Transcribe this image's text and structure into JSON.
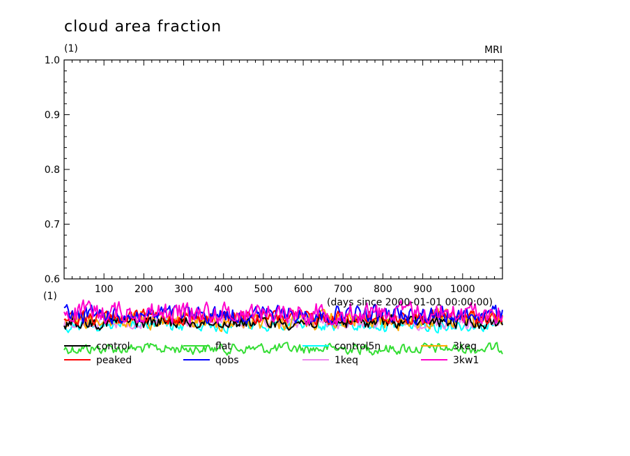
{
  "chart_data": {
    "type": "line",
    "title": "cloud area fraction",
    "units_label": "(1)",
    "units_label_lower": "(1)",
    "source_label": "MRI",
    "xlabel": "(days since 2000-01-01 00:00:00)",
    "ylabel": "",
    "xlim": [
      0,
      1100
    ],
    "ylim": [
      0.6,
      1.0
    ],
    "x_ticks": [
      100,
      200,
      300,
      400,
      500,
      600,
      700,
      800,
      900,
      1000
    ],
    "x_tick_labels": [
      "100",
      "200",
      "300",
      "400",
      "500",
      "600",
      "700",
      "800",
      "900",
      "1000"
    ],
    "y_ticks": [
      0.6,
      0.7,
      0.8,
      0.9,
      1.0
    ],
    "y_tick_labels": [
      "0.6",
      "0.7",
      "0.8",
      "0.9",
      "1.0"
    ],
    "grid": false,
    "legend_position": "bottom",
    "series": [
      {
        "name": "control",
        "color": "#000000",
        "values": []
      },
      {
        "name": "flat",
        "color": "#33dd33",
        "values": []
      },
      {
        "name": "control5n",
        "color": "#00ffff",
        "values": []
      },
      {
        "name": "3keq",
        "color": "#ffaa00",
        "values": []
      },
      {
        "name": "peaked",
        "color": "#ff0000",
        "values": []
      },
      {
        "name": "qobs",
        "color": "#0000ff",
        "values": []
      },
      {
        "name": "1keq",
        "color": "#ee88ee",
        "values": []
      },
      {
        "name": "3kw1",
        "color": "#ff00cc",
        "values": []
      }
    ]
  }
}
